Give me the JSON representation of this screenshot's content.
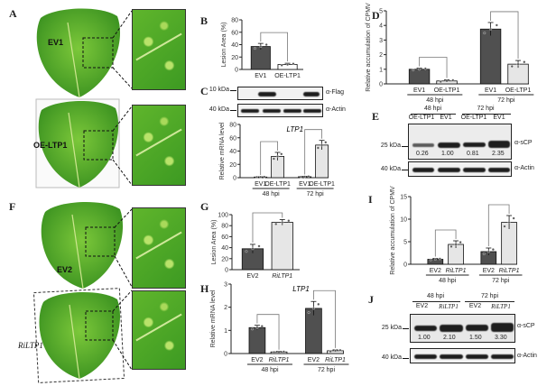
{
  "panels": {
    "A": "A",
    "B": "B",
    "C": "C",
    "D": "D",
    "E": "E",
    "F": "F",
    "G": "G",
    "H": "H",
    "I": "I",
    "J": "J"
  },
  "leaves": {
    "ev1": "EV1",
    "oe": "OE-LTP1",
    "ev2": "EV2",
    "ri": "RiLTP1"
  },
  "blot_c": {
    "kda_top": "10 kDa",
    "kda_bottom": "40 kDa",
    "ab_top": "α-Flag",
    "ab_bottom": "α-Actin"
  },
  "blot_e": {
    "groups": [
      "48 hpi",
      "72 hpi"
    ],
    "lanes": [
      "OE-LTP1",
      "EV1",
      "OE-LTP1",
      "EV1"
    ],
    "kda_top": "25 kDa",
    "kda_bottom": "40 kDa",
    "ab_top": "α-sCP",
    "ab_bottom": "α-Actin",
    "quant": [
      "0.26",
      "1.00",
      "0.81",
      "2.35"
    ]
  },
  "blot_j": {
    "groups": [
      "48 hpi",
      "72 hpi"
    ],
    "lanes": [
      "EV2",
      "RiLTP1",
      "EV2",
      "RiLTP1"
    ],
    "kda_top": "25 kDa",
    "kda_bottom": "40 kDa",
    "ab_top": "α-sCP",
    "ab_bottom": "α-Actin",
    "quant": [
      "1.00",
      "2.10",
      "1.50",
      "3.30"
    ]
  },
  "chart_data": [
    {
      "id": "B",
      "type": "bar",
      "title": "",
      "ylabel": "Lesion Area (%)",
      "ylim": [
        0,
        80
      ],
      "ticks": [
        0,
        20,
        40,
        60,
        80
      ],
      "categories": [
        "EV1",
        "OE-LTP1"
      ],
      "groups": [],
      "values": [
        37,
        8
      ],
      "errors": [
        5,
        2
      ],
      "fills": [
        "#505050",
        "#ffffff"
      ]
    },
    {
      "id": "C",
      "type": "bar",
      "title": "LTP1",
      "ylabel": "Relative mRNA level",
      "ylim": [
        0,
        80
      ],
      "ticks": [
        0,
        20,
        40,
        60,
        80
      ],
      "categories": [
        "EV1",
        "OE-LTP1",
        "EV1",
        "OE-LTP1"
      ],
      "groups": [
        "48 hpi",
        "72 hpi"
      ],
      "values": [
        1,
        32,
        1.5,
        49
      ],
      "errors": [
        0.3,
        6,
        0.5,
        7
      ],
      "fills": [
        "#505050",
        "#e6e6e6",
        "#505050",
        "#e6e6e6"
      ]
    },
    {
      "id": "D",
      "type": "bar",
      "title": "",
      "ylabel": "Relative accumulation of CPMV",
      "ylim": [
        0,
        5
      ],
      "ticks": [
        0,
        1,
        2,
        3,
        4,
        5
      ],
      "categories": [
        "EV1",
        "OE-LTP1",
        "EV1",
        "OE-LTP1"
      ],
      "groups": [
        "48 hpi",
        "72 hpi"
      ],
      "values": [
        1.0,
        0.2,
        3.75,
        1.35
      ],
      "errors": [
        0.08,
        0.08,
        0.45,
        0.25
      ],
      "fills": [
        "#505050",
        "#e6e6e6",
        "#505050",
        "#e6e6e6"
      ]
    },
    {
      "id": "G",
      "type": "bar",
      "title": "",
      "ylabel": "Lesion Area (%)",
      "ylim": [
        0,
        100
      ],
      "ticks": [
        0,
        20,
        40,
        60,
        80,
        100
      ],
      "categories": [
        "EV2",
        "RiLTP1"
      ],
      "groups": [],
      "values": [
        38,
        86
      ],
      "errors": [
        8,
        5
      ],
      "fills": [
        "#505050",
        "#e6e6e6"
      ]
    },
    {
      "id": "H",
      "type": "bar",
      "title": "LTP1",
      "ylabel": "Relative mRNA level",
      "ylim": [
        0,
        3
      ],
      "ticks": [
        0,
        1,
        2,
        3
      ],
      "categories": [
        "EV2",
        "RiLTP1",
        "EV2",
        "RiLTP1"
      ],
      "groups": [
        "48 hpi",
        "72 hpi"
      ],
      "values": [
        1.12,
        0.07,
        1.95,
        0.12
      ],
      "errors": [
        0.1,
        0.02,
        0.3,
        0.04
      ],
      "fills": [
        "#505050",
        "#e6e6e6",
        "#505050",
        "#e6e6e6"
      ]
    },
    {
      "id": "I",
      "type": "bar",
      "title": "",
      "ylabel": "Relative accumulation of CPMV",
      "ylim": [
        0,
        15
      ],
      "ticks": [
        0,
        5,
        10,
        15
      ],
      "categories": [
        "EV2",
        "RiLTP1",
        "EV2",
        "RiLTP1"
      ],
      "groups": [
        "48 hpi",
        "72 hpi"
      ],
      "values": [
        1.1,
        4.4,
        2.8,
        9.3
      ],
      "errors": [
        0.2,
        0.8,
        0.8,
        1.5
      ],
      "fills": [
        "#505050",
        "#e6e6e6",
        "#505050",
        "#e6e6e6"
      ]
    }
  ]
}
